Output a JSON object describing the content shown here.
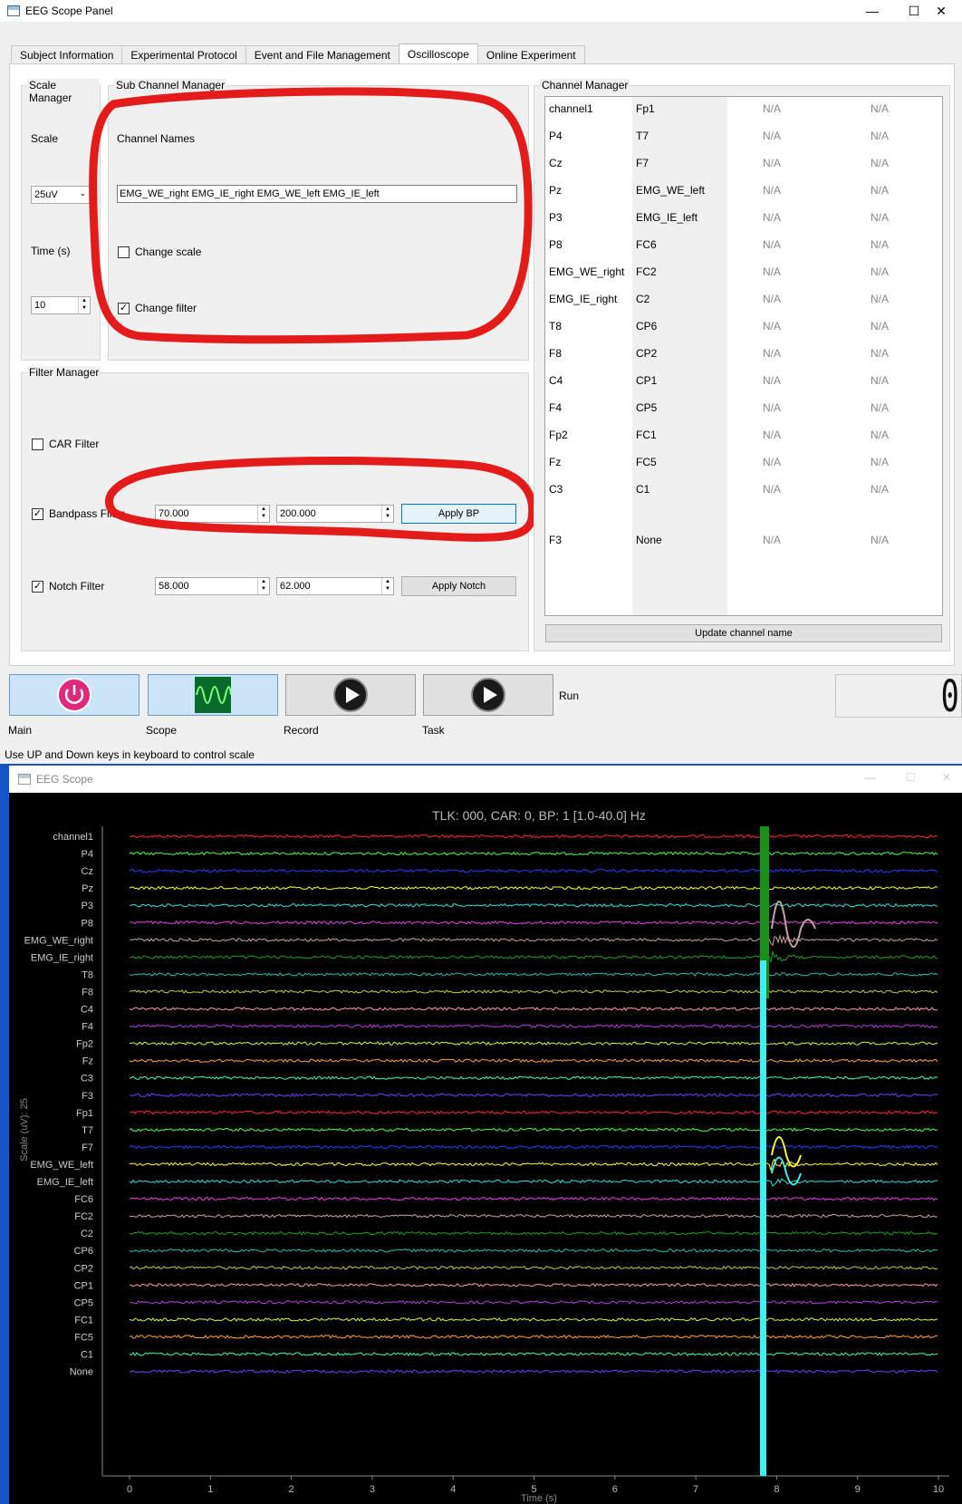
{
  "panel": {
    "title": "EEG Scope Panel",
    "tabs": [
      "Subject Information",
      "Experimental Protocol",
      "Event and File Management",
      "Oscilloscope",
      "Online Experiment"
    ],
    "active_tab": "Oscilloscope"
  },
  "scale_manager": {
    "title": "Scale Manager",
    "scale_label": "Scale",
    "scale_value": "25uV",
    "time_label": "Time (s)",
    "time_value": "10"
  },
  "sub_channel_manager": {
    "title": "Sub Channel Manager",
    "channel_names_label": "Channel Names",
    "channel_names_value": "EMG_WE_right EMG_IE_right EMG_WE_left EMG_IE_left",
    "change_scale_label": "Change scale",
    "change_scale_checked": false,
    "change_filter_label": "Change filter",
    "change_filter_checked": true
  },
  "filter_manager": {
    "title": "Filter Manager",
    "car_label": "CAR Filter",
    "car_checked": false,
    "bandpass_label": "Bandpass Filter",
    "bandpass_checked": true,
    "bp_low": "70.000",
    "bp_high": "200.000",
    "apply_bp": "Apply BP",
    "notch_label": "Notch Filter",
    "notch_checked": true,
    "notch_low": "58.000",
    "notch_high": "62.000",
    "apply_notch": "Apply Notch"
  },
  "channel_manager": {
    "title": "Channel Manager",
    "rows": [
      [
        "channel1",
        "Fp1",
        "N/A",
        "N/A"
      ],
      [
        "P4",
        "T7",
        "N/A",
        "N/A"
      ],
      [
        "Cz",
        "F7",
        "N/A",
        "N/A"
      ],
      [
        "Pz",
        "EMG_WE_left",
        "N/A",
        "N/A"
      ],
      [
        "P3",
        "EMG_IE_left",
        "N/A",
        "N/A"
      ],
      [
        "P8",
        "FC6",
        "N/A",
        "N/A"
      ],
      [
        "EMG_WE_right",
        "FC2",
        "N/A",
        "N/A"
      ],
      [
        "EMG_IE_right",
        "C2",
        "N/A",
        "N/A"
      ],
      [
        "T8",
        "CP6",
        "N/A",
        "N/A"
      ],
      [
        "F8",
        "CP2",
        "N/A",
        "N/A"
      ],
      [
        "C4",
        "CP1",
        "N/A",
        "N/A"
      ],
      [
        "F4",
        "CP5",
        "N/A",
        "N/A"
      ],
      [
        "Fp2",
        "FC1",
        "N/A",
        "N/A"
      ],
      [
        "Fz",
        "FC5",
        "N/A",
        "N/A"
      ],
      [
        "C3",
        "C1",
        "N/A",
        "N/A"
      ],
      [
        "F3",
        "None",
        "N/A",
        "N/A"
      ]
    ],
    "update_button": "Update channel name"
  },
  "controls": {
    "main_label": "Main",
    "scope_label": "Scope",
    "record_label": "Record",
    "task_label": "Task",
    "run_label": "Run",
    "counter": "0"
  },
  "status_text": "Use UP and Down keys in keyboard to control scale",
  "scope_window": {
    "title": "EEG Scope",
    "header": "TLK: 000, CAR: 0, BP: 1 [1.0-40.0] Hz",
    "ylabel": "Scale (uV): 25",
    "xlabel": "Time (s)"
  },
  "chart_data": {
    "type": "line",
    "title": "TLK: 000, CAR: 0, BP: 1 [1.0-40.0] Hz",
    "xlabel": "Time (s)",
    "ylabel": "Scale (uV): 25",
    "xlim": [
      0,
      10
    ],
    "x_ticks": [
      0,
      1,
      2,
      3,
      4,
      5,
      6,
      7,
      8,
      9,
      10
    ],
    "channels": [
      "channel1",
      "P4",
      "Cz",
      "Pz",
      "P3",
      "P8",
      "EMG_WE_right",
      "EMG_IE_right",
      "T8",
      "F8",
      "C4",
      "F4",
      "Fp2",
      "Fz",
      "C3",
      "F3",
      "Fp1",
      "T7",
      "F7",
      "EMG_WE_left",
      "EMG_IE_left",
      "FC6",
      "FC2",
      "C2",
      "CP6",
      "CP2",
      "CP1",
      "CP5",
      "FC1",
      "FC5",
      "C1",
      "None"
    ],
    "colors": [
      "#ff2a2a",
      "#4cff4c",
      "#2a3cff",
      "#ffff33",
      "#33e0e0",
      "#e044e0",
      "#c9a3a3",
      "#1fa01f",
      "#2fb7b7",
      "#c8c84a",
      "#ff9aaa",
      "#b440d8",
      "#c8ff40",
      "#ffa040",
      "#40ffa0",
      "#7040ff",
      "#ff2a2a",
      "#4cff4c",
      "#2a3cff",
      "#ffff33",
      "#33e0e0",
      "#e044e0",
      "#c9a3a3",
      "#1fa01f",
      "#2fb7b7",
      "#c8c84a",
      "#ff9aaa",
      "#b440d8",
      "#c8ff40",
      "#ffa040",
      "#40ffa0",
      "#7040ff"
    ],
    "artifact_time": 7.85
  }
}
